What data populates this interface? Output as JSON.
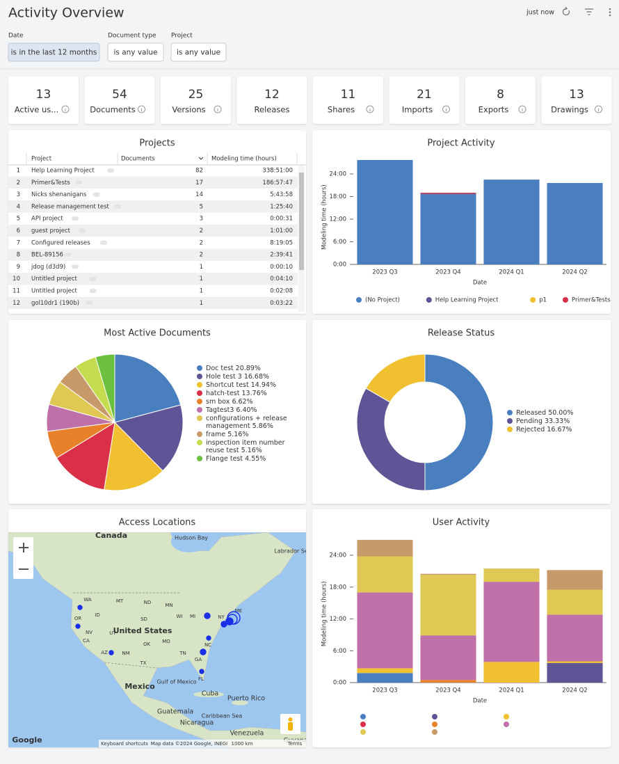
{
  "header": {
    "title": "Activity Overview",
    "refreshed": "just now"
  },
  "filters": [
    {
      "label": "Date",
      "value": "is in the last 12 months"
    },
    {
      "label": "Document type",
      "value": "is any value"
    },
    {
      "label": "Project",
      "value": "is any value"
    }
  ],
  "kpis": [
    {
      "value": 13,
      "label": "Active us..."
    },
    {
      "value": 54,
      "label": "Documents"
    },
    {
      "value": 25,
      "label": "Versions"
    },
    {
      "value": 12,
      "label": "Releases"
    },
    {
      "value": 11,
      "label": "Shares"
    },
    {
      "value": 21,
      "label": "Imports"
    },
    {
      "value": 8,
      "label": "Exports"
    },
    {
      "value": 13,
      "label": "Drawings"
    }
  ],
  "projects_table": {
    "title": "Projects",
    "columns": [
      "Project",
      "Documents",
      "Modeling time (hours)"
    ],
    "rows": [
      [
        1,
        "Help Learning Project",
        82,
        "338:51:00"
      ],
      [
        2,
        "Primer&Tests",
        17,
        "186:57:47"
      ],
      [
        3,
        "Nicks shenanigans",
        14,
        "5:43:58"
      ],
      [
        4,
        "Release management test",
        5,
        "1:25:40"
      ],
      [
        5,
        "API project",
        3,
        "0:00:31"
      ],
      [
        6,
        "guest project",
        2,
        "1:01:00"
      ],
      [
        7,
        "Configured releases",
        2,
        "8:19:05"
      ],
      [
        8,
        "BEL-89156",
        2,
        "2:39:41"
      ],
      [
        9,
        "jdog (d3d9)",
        1,
        "0:00:10"
      ],
      [
        10,
        "Untitled project",
        1,
        "0:04:10"
      ],
      [
        11,
        "Untitled project",
        1,
        "0:02:08"
      ],
      [
        12,
        "gol10dr1 (190b)",
        1,
        "0:03:22"
      ]
    ]
  },
  "map": {
    "title": "Access Locations",
    "labels": [
      "Canada",
      "Hudson Bay",
      "Labrador Sea",
      "WA",
      "MT",
      "ND",
      "MN",
      "OR",
      "ID",
      "SD",
      "WI",
      "MI",
      "NY",
      "ME",
      "NV",
      "UT",
      "United States",
      "CA",
      "AZ",
      "NM",
      "OK",
      "TX",
      "MO",
      "TN",
      "NC",
      "GA",
      "FL",
      "Gulf of Mexico",
      "Mexico",
      "Cuba",
      "Puerto Rico",
      "Guatemala",
      "Caribbean Sea",
      "Nicaragua",
      "Venezuela",
      "Guyana"
    ],
    "attribution": [
      "Google",
      "Keyboard shortcuts",
      "Map data ©2024 Google, INEGI",
      "1000 km",
      "Terms"
    ]
  },
  "chart_data": [
    {
      "type": "bar",
      "stacked": true,
      "title": "Project Activity",
      "y_label": "Modeling time (hours)",
      "x_label": "Date",
      "categories": [
        "2023 Q3",
        "2023 Q4",
        "2024 Q1",
        "2024 Q2"
      ],
      "series": [
        {
          "name": "(No Project)",
          "color": "#4a7fbf",
          "values": [
            27.7,
            18.5,
            22.5,
            21.6
          ]
        },
        {
          "name": "Help Learning Project",
          "color": "#5f5495",
          "values": [
            0,
            0.3,
            0,
            0
          ]
        },
        {
          "name": "p1",
          "color": "#f0c030",
          "values": [
            0,
            0,
            0,
            0
          ]
        },
        {
          "name": "Primer&Tests",
          "color": "#d93048",
          "values": [
            0,
            0.2,
            0,
            0
          ]
        }
      ],
      "ylim": [
        0,
        28
      ],
      "yticks": [
        {
          "value": 0,
          "label": "0:00"
        },
        {
          "value": 6,
          "label": "6:00"
        },
        {
          "value": 12,
          "label": "12:00"
        },
        {
          "value": 18,
          "label": "18:00"
        },
        {
          "value": 24,
          "label": "24:00"
        }
      ],
      "legend": "bottom"
    },
    {
      "type": "pie",
      "title": "Most Active Documents",
      "categories": [
        "Doc test",
        "Hole test 3",
        "Shortcut test",
        "hatch-test",
        "sm box",
        "Tagtest3",
        "configurations + release management",
        "frame",
        "inspection item number reuse test",
        "Flange test"
      ],
      "values": [
        20.89,
        16.68,
        14.94,
        13.76,
        6.62,
        6.4,
        5.86,
        5.16,
        5.16,
        4.55
      ],
      "value_labels": [
        "20.89%",
        "16.68%",
        "14.94%",
        "13.76%",
        "6.62%",
        "6.40%",
        "5.86%",
        "5.16%",
        "5.16%",
        "4.55%"
      ],
      "colors": [
        "#4a7fbf",
        "#5f5495",
        "#f0c030",
        "#d93048",
        "#e8822a",
        "#c070a8",
        "#e0c855",
        "#c89a6a",
        "#c4dc50",
        "#6cc040"
      ],
      "legend": "right"
    },
    {
      "type": "donut",
      "title": "Release Status",
      "categories": [
        "Released",
        "Pending",
        "Rejected"
      ],
      "values": [
        50.0,
        33.33,
        16.67
      ],
      "value_labels": [
        "50.00%",
        "33.33%",
        "16.67%"
      ],
      "colors": [
        "#4a7fbf",
        "#5f5495",
        "#f0c030"
      ],
      "legend": "right"
    },
    {
      "type": "bar",
      "stacked": true,
      "title": "User Activity",
      "y_label": "Modeling time (hours)",
      "x_label": "Date",
      "categories": [
        "2023 Q3",
        "2023 Q4",
        "2024 Q1",
        "2024 Q2"
      ],
      "series": [
        {
          "color": "#4a7fbf",
          "values": [
            1.8,
            0,
            0,
            0
          ]
        },
        {
          "color": "#5f5495",
          "values": [
            0,
            0,
            0,
            3.7
          ]
        },
        {
          "color": "#f0c030",
          "values": [
            0.9,
            0,
            3.9,
            0.3
          ]
        },
        {
          "color": "#d93048",
          "values": [
            0,
            0,
            0,
            0
          ]
        },
        {
          "color": "#e8822a",
          "values": [
            0,
            0.5,
            0,
            0
          ]
        },
        {
          "color": "#c070a8",
          "values": [
            14.3,
            8.4,
            15.1,
            8.8
          ]
        },
        {
          "color": "#e0c855",
          "values": [
            6.8,
            11.4,
            2.5,
            4.7
          ]
        },
        {
          "color": "#c89a6a",
          "values": [
            3.1,
            0.2,
            0,
            3.7
          ]
        }
      ],
      "ylim": [
        0,
        28
      ],
      "yticks": [
        {
          "value": 0,
          "label": "0:00"
        },
        {
          "value": 6,
          "label": "6:00"
        },
        {
          "value": 12,
          "label": "12:00"
        },
        {
          "value": 18,
          "label": "18:00"
        },
        {
          "value": 24,
          "label": "24:00"
        }
      ],
      "legend": "bottom"
    }
  ]
}
